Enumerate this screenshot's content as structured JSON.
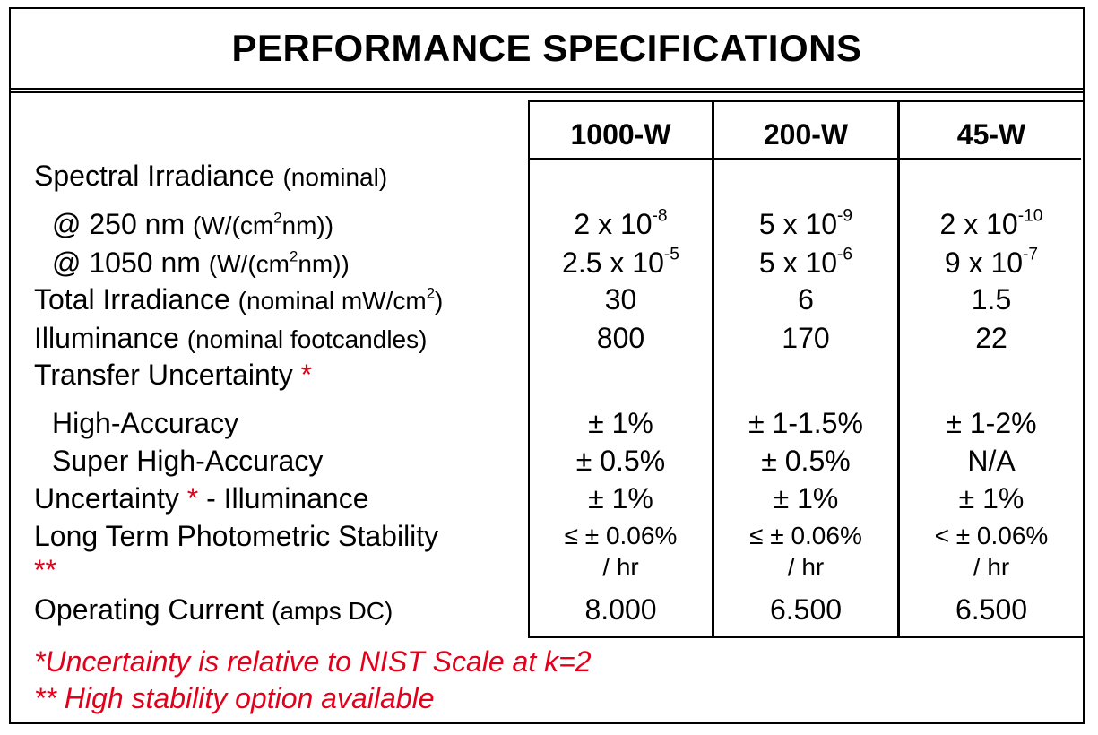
{
  "title": "PERFORMANCE SPECIFICATIONS",
  "columns": [
    "1000-W",
    "200-W",
    "45-W"
  ],
  "spectral": {
    "label": "Spectral Irradiance",
    "note": "(nominal)",
    "r250": {
      "label": "@ 250 nm",
      "unit_a": "(W/(cm",
      "unit_sup": "2",
      "unit_b": "nm))",
      "values": [
        {
          "base": "2 x 10",
          "exp": "-8"
        },
        {
          "base": "5 x 10",
          "exp": "-9"
        },
        {
          "base": "2 x 10",
          "exp": "-10"
        }
      ]
    },
    "r1050": {
      "label": "@ 1050 nm",
      "unit_a": "(W/(cm",
      "unit_sup": "2",
      "unit_b": "nm))",
      "values": [
        {
          "base": "2.5 x 10",
          "exp": "-5"
        },
        {
          "base": "5 x 10",
          "exp": "-6"
        },
        {
          "base": "9 x 10",
          "exp": "-7"
        }
      ]
    }
  },
  "total_irradiance": {
    "label": "Total Irradiance",
    "note_a": "(nominal mW/cm",
    "note_sup": "2",
    "note_b": ")",
    "values": [
      "30",
      "6",
      "1.5"
    ]
  },
  "illuminance": {
    "label": "Illuminance",
    "note": "(nominal footcandles)",
    "values": [
      "800",
      "170",
      "22"
    ]
  },
  "transfer": {
    "label": "Transfer Uncertainty",
    "star": "*"
  },
  "high_accuracy": {
    "label": "High-Accuracy",
    "values": [
      "± 1%",
      "± 1-1.5%",
      "± 1-2%"
    ]
  },
  "super_high_accuracy": {
    "label": "Super High-Accuracy",
    "values": [
      "± 0.5%",
      "± 0.5%",
      "N/A"
    ]
  },
  "uncertainty_illum": {
    "label_a": "Uncertainty",
    "star": "*",
    "label_b": "- Illuminance",
    "values": [
      "± 1%",
      "± 1%",
      "± 1%"
    ]
  },
  "stability": {
    "label": "Long Term Photometric Stability",
    "stars": "**",
    "values": [
      "≤ ± 0.06%",
      "≤ ± 0.06%",
      "< ± 0.06%"
    ],
    "per": "/ hr"
  },
  "current": {
    "label": "Operating Current",
    "note": "(amps DC)",
    "values": [
      "8.000",
      "6.500",
      "6.500"
    ]
  },
  "footnotes": {
    "f1": "*Uncertainty is relative to NIST Scale at k=2",
    "f2": "** High stability option available"
  },
  "colors": {
    "accent_red": "#e3001b",
    "line": "#000000"
  }
}
